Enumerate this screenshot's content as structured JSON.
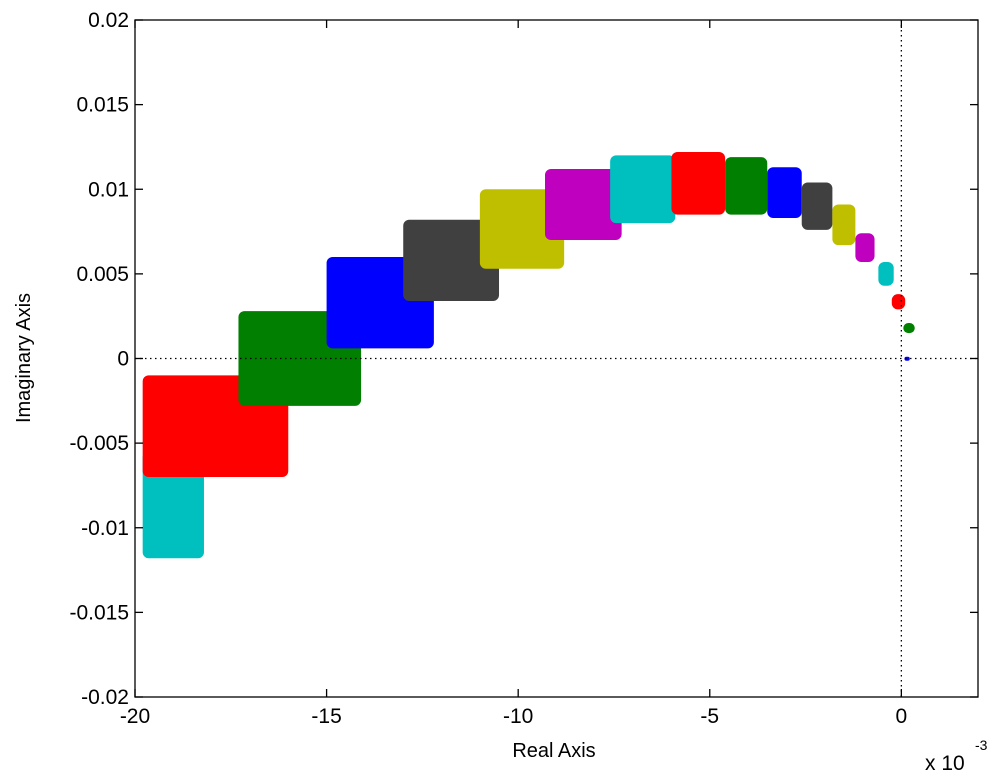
{
  "chart_data": {
    "type": "scatter",
    "title": "",
    "xlabel": "Real Axis",
    "ylabel": "Imaginary Axis",
    "x_exponent_base": "x 10",
    "x_exponent_power": "-3",
    "xlim": [
      -20,
      2
    ],
    "ylim": [
      -0.02,
      0.02
    ],
    "x_ticks": [
      -20,
      -15,
      -10,
      -5,
      0
    ],
    "x_tick_labels": [
      "-20",
      "-15",
      "-10",
      "-5",
      "0"
    ],
    "y_ticks": [
      -0.02,
      -0.015,
      -0.01,
      -0.005,
      0,
      0.005,
      0.01,
      0.015,
      0.02
    ],
    "y_tick_labels": [
      "-0.02",
      "-0.015",
      "-0.01",
      "-0.005",
      "0",
      "0.005",
      "0.01",
      "0.015",
      "0.02"
    ],
    "grid": false,
    "reference_lines": {
      "x": 0,
      "y": 0,
      "style": "dotted"
    },
    "series": [
      {
        "color": "#00bfbf",
        "x_range": [
          -19.8,
          -18.2
        ],
        "y_range": [
          -0.0118,
          -0.0055
        ]
      },
      {
        "color": "#ff0000",
        "x_range": [
          -19.8,
          -16.0
        ],
        "y_range": [
          -0.007,
          -0.001
        ]
      },
      {
        "color": "#007f00",
        "x_range": [
          -17.3,
          -14.1
        ],
        "y_range": [
          -0.0028,
          0.0028
        ]
      },
      {
        "color": "#0000ff",
        "x_range": [
          -15.0,
          -12.2
        ],
        "y_range": [
          0.0006,
          0.006
        ]
      },
      {
        "color": "#404040",
        "x_range": [
          -13.0,
          -10.5
        ],
        "y_range": [
          0.0034,
          0.0082
        ]
      },
      {
        "color": "#bfbf00",
        "x_range": [
          -11.0,
          -8.8
        ],
        "y_range": [
          0.0053,
          0.01
        ]
      },
      {
        "color": "#bf00bf",
        "x_range": [
          -9.3,
          -7.3
        ],
        "y_range": [
          0.007,
          0.0112
        ]
      },
      {
        "color": "#00bfbf",
        "x_range": [
          -7.6,
          -5.9
        ],
        "y_range": [
          0.008,
          0.012
        ]
      },
      {
        "color": "#ff0000",
        "x_range": [
          -6.0,
          -4.6
        ],
        "y_range": [
          0.0085,
          0.0122
        ]
      },
      {
        "color": "#007f00",
        "x_range": [
          -4.6,
          -3.5
        ],
        "y_range": [
          0.0085,
          0.0119
        ]
      },
      {
        "color": "#0000ff",
        "x_range": [
          -3.5,
          -2.6
        ],
        "y_range": [
          0.0083,
          0.0113
        ]
      },
      {
        "color": "#404040",
        "x_range": [
          -2.6,
          -1.8
        ],
        "y_range": [
          0.0076,
          0.0104
        ]
      },
      {
        "color": "#bfbf00",
        "x_range": [
          -1.8,
          -1.2
        ],
        "y_range": [
          0.0067,
          0.0091
        ]
      },
      {
        "color": "#bf00bf",
        "x_range": [
          -1.2,
          -0.7
        ],
        "y_range": [
          0.0057,
          0.0074
        ]
      },
      {
        "color": "#00bfbf",
        "x_range": [
          -0.6,
          -0.2
        ],
        "y_range": [
          0.0043,
          0.0057
        ]
      },
      {
        "color": "#ff0000",
        "x_range": [
          -0.25,
          0.1
        ],
        "y_range": [
          0.0029,
          0.0038
        ]
      },
      {
        "color": "#007f00",
        "x_range": [
          0.05,
          0.35
        ],
        "y_range": [
          0.0015,
          0.0021
        ]
      },
      {
        "color": "#0000ff",
        "x_range": [
          0.08,
          0.22
        ],
        "y_range": [
          -0.0001,
          0.0001
        ]
      }
    ]
  }
}
